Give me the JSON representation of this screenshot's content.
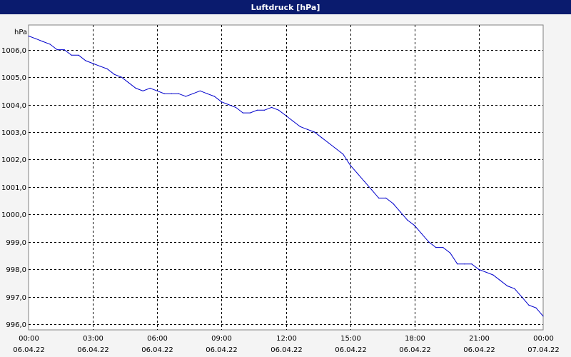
{
  "window": {
    "title": "Luftdruck [hPa]"
  },
  "colors": {
    "titlebar": "#0a1b6e",
    "series": "#0000cc",
    "grid": "#000000",
    "background": "#f4f4f4",
    "plot_background": "#ffffff"
  },
  "chart_data": {
    "type": "line",
    "title": "Luftdruck [hPa]",
    "ylabel": "hPa",
    "xlabel": "",
    "ylim": [
      995.8,
      1006.9
    ],
    "xlim": [
      "06.04.22 00:00",
      "07.04.22 00:00"
    ],
    "grid": true,
    "legend": "none",
    "y_ticks": [
      "996,0",
      "997,0",
      "998,0",
      "999,0",
      "1000,0",
      "1001,0",
      "1002,0",
      "1003,0",
      "1004,0",
      "1005,0",
      "1006,0"
    ],
    "x_ticks": [
      {
        "time": "00:00",
        "date": "06.04.22"
      },
      {
        "time": "03:00",
        "date": "06.04.22"
      },
      {
        "time": "06:00",
        "date": "06.04.22"
      },
      {
        "time": "09:00",
        "date": "06.04.22"
      },
      {
        "time": "12:00",
        "date": "06.04.22"
      },
      {
        "time": "15:00",
        "date": "06.04.22"
      },
      {
        "time": "18:00",
        "date": "06.04.22"
      },
      {
        "time": "21:00",
        "date": "06.04.22"
      },
      {
        "time": "00:00",
        "date": "07.04.22"
      }
    ],
    "series": [
      {
        "x": [
          "06.04.22 00:00",
          "06.04.22 00:20",
          "06.04.22 00:40",
          "06.04.22 01:00",
          "06.04.22 01:20",
          "06.04.22 01:40",
          "06.04.22 02:00",
          "06.04.22 02:20",
          "06.04.22 02:40",
          "06.04.22 03:00",
          "06.04.22 03:20",
          "06.04.22 03:40",
          "06.04.22 04:00",
          "06.04.22 04:20",
          "06.04.22 04:40",
          "06.04.22 05:00",
          "06.04.22 05:20",
          "06.04.22 05:40",
          "06.04.22 06:00",
          "06.04.22 06:20",
          "06.04.22 06:40",
          "06.04.22 07:00",
          "06.04.22 07:20",
          "06.04.22 07:40",
          "06.04.22 08:00",
          "06.04.22 08:20",
          "06.04.22 08:40",
          "06.04.22 09:00",
          "06.04.22 09:20",
          "06.04.22 09:40",
          "06.04.22 10:00",
          "06.04.22 10:20",
          "06.04.22 10:40",
          "06.04.22 11:00",
          "06.04.22 11:20",
          "06.04.22 11:40",
          "06.04.22 12:00",
          "06.04.22 12:20",
          "06.04.22 12:40",
          "06.04.22 13:00",
          "06.04.22 13:20",
          "06.04.22 13:40",
          "06.04.22 14:00",
          "06.04.22 14:20",
          "06.04.22 14:40",
          "06.04.22 15:00",
          "06.04.22 15:20",
          "06.04.22 15:40",
          "06.04.22 16:00",
          "06.04.22 16:20",
          "06.04.22 16:40",
          "06.04.22 17:00",
          "06.04.22 17:20",
          "06.04.22 17:40",
          "06.04.22 18:00",
          "06.04.22 18:20",
          "06.04.22 18:40",
          "06.04.22 19:00",
          "06.04.22 19:20",
          "06.04.22 19:40",
          "06.04.22 20:00",
          "06.04.22 20:20",
          "06.04.22 20:40",
          "06.04.22 21:00",
          "06.04.22 21:20",
          "06.04.22 21:40",
          "06.04.22 22:00",
          "06.04.22 22:20",
          "06.04.22 22:40",
          "06.04.22 23:00",
          "06.04.22 23:20",
          "06.04.22 23:40",
          "07.04.22 00:00"
        ],
        "values": [
          1006.5,
          1006.4,
          1006.3,
          1006.2,
          1006.0,
          1006.0,
          1005.8,
          1005.8,
          1005.6,
          1005.5,
          1005.4,
          1005.3,
          1005.1,
          1005.0,
          1004.8,
          1004.6,
          1004.5,
          1004.6,
          1004.5,
          1004.4,
          1004.4,
          1004.4,
          1004.3,
          1004.4,
          1004.5,
          1004.4,
          1004.3,
          1004.1,
          1004.0,
          1003.9,
          1003.7,
          1003.7,
          1003.8,
          1003.8,
          1003.9,
          1003.8,
          1003.6,
          1003.4,
          1003.2,
          1003.1,
          1003.0,
          1002.8,
          1002.6,
          1002.4,
          1002.2,
          1001.8,
          1001.5,
          1001.2,
          1000.9,
          1000.6,
          1000.6,
          1000.4,
          1000.1,
          999.8,
          999.6,
          999.3,
          999.0,
          998.8,
          998.8,
          998.6,
          998.2,
          998.2,
          998.2,
          998.0,
          997.9,
          997.8,
          997.6,
          997.4,
          997.3,
          997.0,
          996.7,
          996.6,
          996.3
        ]
      }
    ]
  }
}
